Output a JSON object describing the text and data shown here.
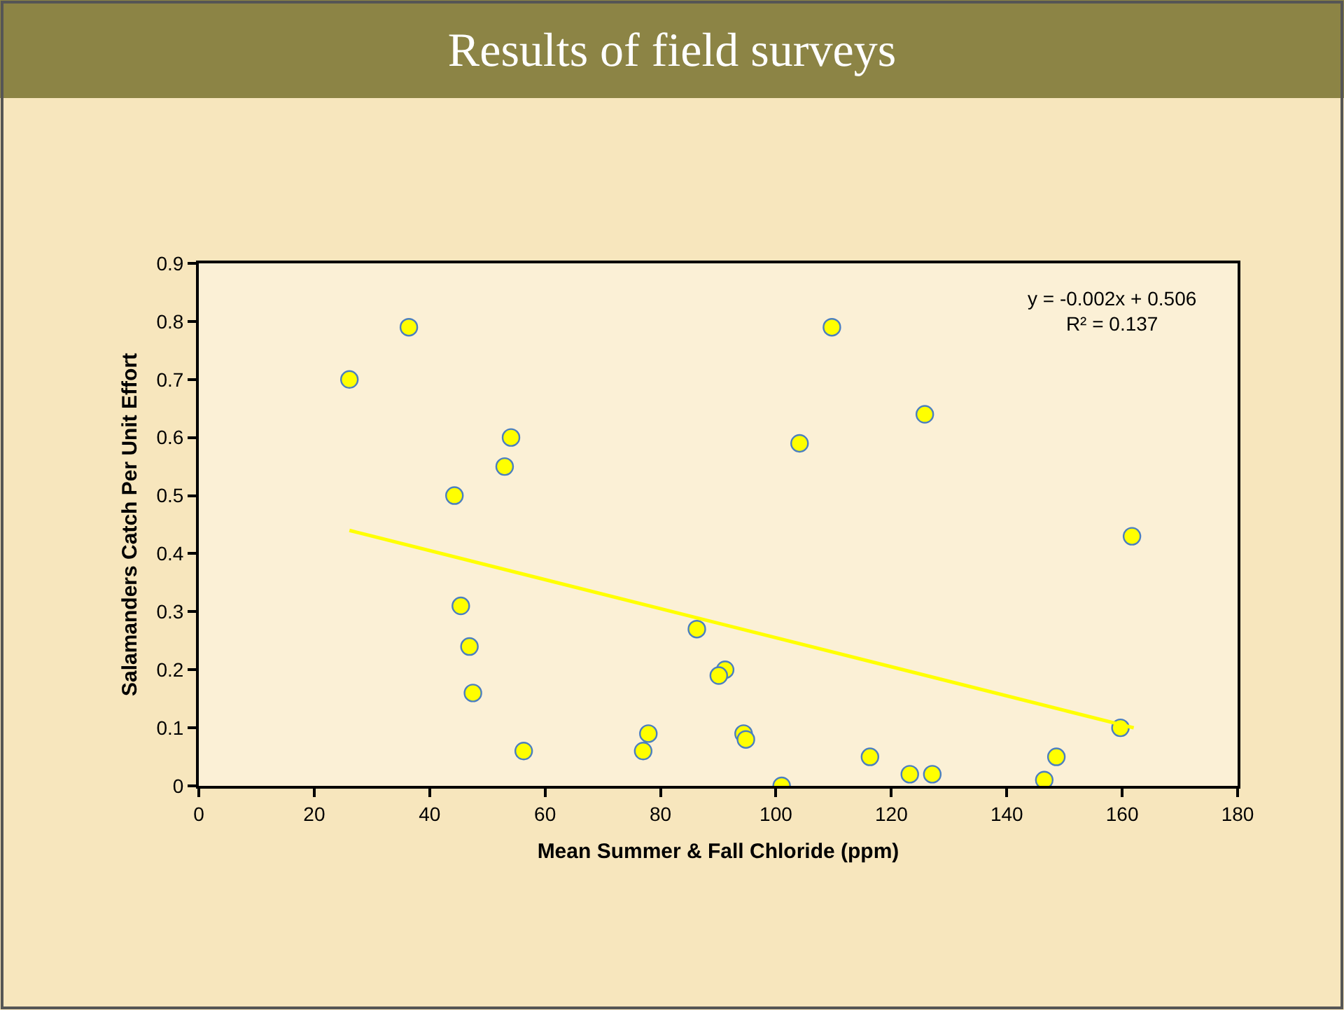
{
  "chart_data": {
    "type": "scatter",
    "title": "Results of field surveys",
    "xlabel": "Mean Summer & Fall Chloride (ppm)",
    "ylabel": "Salamanders Catch Per Unit Effort",
    "xlim": [
      0,
      180
    ],
    "xticks": [
      0,
      20,
      40,
      60,
      80,
      100,
      120,
      140,
      160,
      180
    ],
    "ylim": [
      0,
      0.9
    ],
    "yticks": [
      0,
      0.1,
      0.2,
      0.3,
      0.4,
      0.5,
      0.6,
      0.7,
      0.8,
      0.9
    ],
    "grid": false,
    "annotations": [
      "y = -0.002x + 0.506\nR² = 0.137"
    ],
    "series": [
      {
        "marker": "circle",
        "color": "#ffff00",
        "x": [
          26.1,
          36.4,
          54.1,
          53.0,
          44.3,
          45.4,
          46.9,
          47.5,
          56.3,
          77.9,
          77.0,
          86.3,
          91.2,
          90.1,
          94.4,
          94.8,
          109.7,
          104.1,
          125.8,
          161.7,
          101.0,
          116.3,
          123.2,
          127.1,
          146.5,
          148.6,
          159.7
        ],
        "values": [
          0.7,
          0.79,
          0.6,
          0.55,
          0.5,
          0.31,
          0.24,
          0.16,
          0.06,
          0.09,
          0.06,
          0.27,
          0.2,
          0.19,
          0.09,
          0.08,
          0.79,
          0.59,
          0.64,
          0.43,
          0.0,
          0.05,
          0.02,
          0.02,
          0.01,
          0.05,
          0.1
        ]
      },
      {
        "type": "line",
        "marker": "none",
        "color": "#ffff00",
        "x": [
          26.1,
          162.0
        ],
        "values": [
          0.44,
          0.1
        ]
      }
    ]
  }
}
